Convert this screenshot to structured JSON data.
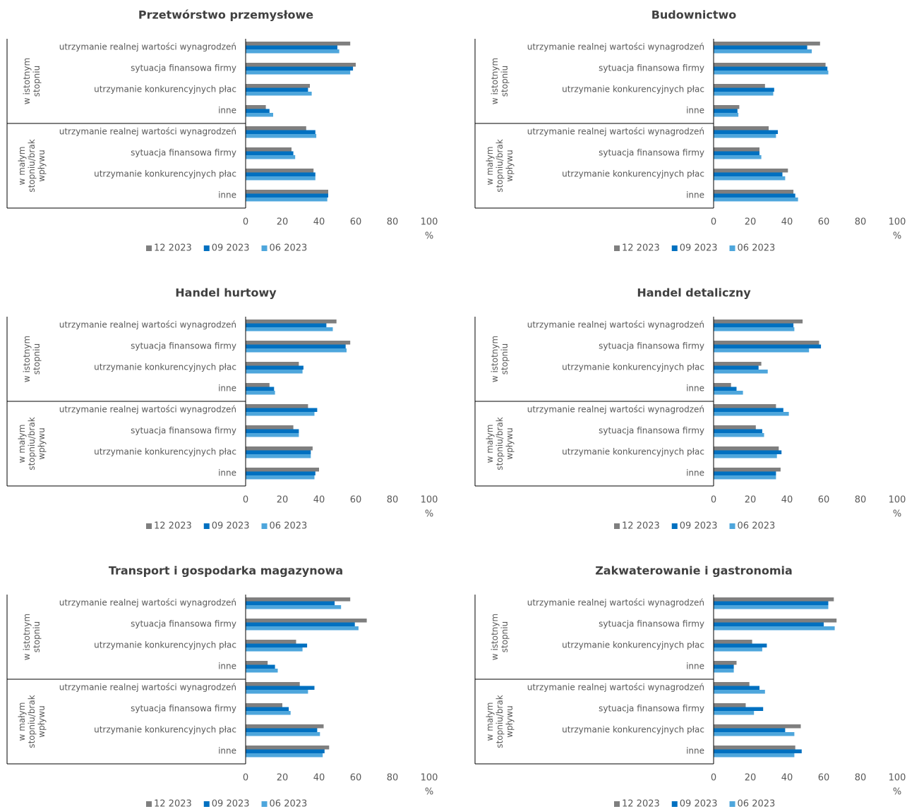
{
  "chart_data": [
    {
      "type": "bar",
      "orientation": "horizontal",
      "title": "Przetwórstwo przemysłowe",
      "groups": [
        {
          "name": "w istotnym stopniu",
          "categories": [
            "utrzymanie realnej wartości wynagrodzeń",
            "sytuacja finansowa firmy",
            "utrzymanie konkurencyjnych płac",
            "inne"
          ]
        },
        {
          "name": "w małym stopniu/brak wpływu",
          "categories": [
            "utrzymanie realnej wartości wynagrodzeń",
            "sytuacja finansowa firmy",
            "utrzymanie konkurencyjnych płac",
            "inne"
          ]
        }
      ],
      "series": [
        {
          "name": "12 2023",
          "color": "#7f7f7f",
          "values": [
            57,
            60,
            35,
            11,
            33,
            25,
            37,
            45
          ]
        },
        {
          "name": "09 2023",
          "color": "#0070c0",
          "values": [
            50,
            58.5,
            34,
            13,
            38,
            26,
            38,
            45
          ]
        },
        {
          "name": "06 2023",
          "color": "#4ea6dc",
          "values": [
            51,
            57,
            36,
            15,
            38.5,
            27,
            38,
            44.5
          ]
        }
      ],
      "xlim": [
        0,
        100
      ],
      "xticks": [
        0,
        20,
        40,
        60,
        80,
        100
      ],
      "x_unit": "%",
      "legend": "bottom"
    },
    {
      "type": "bar",
      "orientation": "horizontal",
      "title": "Budownictwo",
      "groups": [
        {
          "name": "w istotnym stopniu",
          "categories": [
            "utrzymanie realnej wartości wynagrodzeń",
            "sytuacja finansowa firmy",
            "utrzymanie konkurencyjnych płac",
            "inne"
          ]
        },
        {
          "name": "w małym stopniu/brak wpływu",
          "categories": [
            "utrzymanie realnej wartości wynagrodzeń",
            "sytuacja finansowa firmy",
            "utrzymanie konkurencyjnych płac",
            "inne"
          ]
        }
      ],
      "series": [
        {
          "name": "12 2023",
          "color": "#7f7f7f",
          "values": [
            58,
            61,
            28,
            14,
            30,
            25,
            40.5,
            43.5
          ]
        },
        {
          "name": "09 2023",
          "color": "#0070c0",
          "values": [
            51,
            62,
            33,
            13,
            35,
            25,
            37.5,
            44.5
          ]
        },
        {
          "name": "06 2023",
          "color": "#4ea6dc",
          "values": [
            53.5,
            62.5,
            32.5,
            13.5,
            34,
            26,
            39,
            46
          ]
        }
      ],
      "xlim": [
        0,
        100
      ],
      "xticks": [
        0,
        20,
        40,
        60,
        80,
        100
      ],
      "x_unit": "%",
      "legend": "bottom"
    },
    {
      "type": "bar",
      "orientation": "horizontal",
      "title": "Handel hurtowy",
      "groups": [
        {
          "name": "w istotnym stopniu",
          "categories": [
            "utrzymanie realnej wartości wynagrodzeń",
            "sytuacja finansowa firmy",
            "utrzymanie konkurencyjnych płac",
            "inne"
          ]
        },
        {
          "name": "w małym stopniu/brak wpływu",
          "categories": [
            "utrzymanie realnej wartości wynagrodzeń",
            "sytuacja finansowa firmy",
            "utrzymanie konkurencyjnych płac",
            "inne"
          ]
        }
      ],
      "series": [
        {
          "name": "12 2023",
          "color": "#7f7f7f",
          "values": [
            49.5,
            57,
            29,
            13,
            34,
            26,
            36.5,
            40
          ]
        },
        {
          "name": "09 2023",
          "color": "#0070c0",
          "values": [
            44,
            54.5,
            31.5,
            15.5,
            39,
            29,
            35.5,
            38
          ]
        },
        {
          "name": "06 2023",
          "color": "#4ea6dc",
          "values": [
            47.5,
            55,
            31,
            16,
            37.5,
            29,
            35.5,
            37.5
          ]
        }
      ],
      "xlim": [
        0,
        100
      ],
      "xticks": [
        0,
        20,
        40,
        60,
        80,
        100
      ],
      "x_unit": "%",
      "legend": "bottom"
    },
    {
      "type": "bar",
      "orientation": "horizontal",
      "title": "Handel detaliczny",
      "groups": [
        {
          "name": "w istotnym stopniu",
          "categories": [
            "utrzymanie realnej wartości wynagrodzeń",
            "sytuacja finansowa firmy",
            "utrzymanie konkurencyjnych płac",
            "inne"
          ]
        },
        {
          "name": "w małym stopniu/brak wpływu",
          "categories": [
            "utrzymanie realnej wartości wynagrodzeń",
            "sytuacja finansowa firmy",
            "utrzymanie konkurencyjnych płac",
            "inne"
          ]
        }
      ],
      "series": [
        {
          "name": "12 2023",
          "color": "#7f7f7f",
          "values": [
            48.5,
            57.5,
            26,
            9.5,
            34,
            23,
            35.5,
            36.5
          ]
        },
        {
          "name": "09 2023",
          "color": "#0070c0",
          "values": [
            43.5,
            58.5,
            24.5,
            12.5,
            38,
            26.5,
            37,
            34
          ]
        },
        {
          "name": "06 2023",
          "color": "#4ea6dc",
          "values": [
            44,
            52,
            29.5,
            16,
            41,
            27.5,
            34.5,
            34
          ]
        }
      ],
      "xlim": [
        0,
        100
      ],
      "xticks": [
        0,
        20,
        40,
        60,
        80,
        100
      ],
      "x_unit": "%",
      "legend": "bottom"
    },
    {
      "type": "bar",
      "orientation": "horizontal",
      "title": "Transport i gospodarka magazynowa",
      "groups": [
        {
          "name": "w istotnym stopniu",
          "categories": [
            "utrzymanie realnej wartości wynagrodzeń",
            "sytuacja finansowa firmy",
            "utrzymanie konkurencyjnych płac",
            "inne"
          ]
        },
        {
          "name": "w małym stopniu/brak wpływu",
          "categories": [
            "utrzymanie realnej wartości wynagrodzeń",
            "sytuacja finansowa firmy",
            "utrzymanie konkurencyjnych płac",
            "inne"
          ]
        }
      ],
      "series": [
        {
          "name": "12 2023",
          "color": "#7f7f7f",
          "values": [
            57,
            66,
            27.5,
            12,
            29.5,
            20,
            42.5,
            45.5
          ]
        },
        {
          "name": "09 2023",
          "color": "#0070c0",
          "values": [
            48.5,
            59.5,
            33.5,
            16,
            37.5,
            23.5,
            39,
            43
          ]
        },
        {
          "name": "06 2023",
          "color": "#4ea6dc",
          "values": [
            52,
            61.5,
            31,
            17.5,
            34,
            24.5,
            40.5,
            42
          ]
        }
      ],
      "xlim": [
        0,
        100
      ],
      "xticks": [
        0,
        20,
        40,
        60,
        80,
        100
      ],
      "x_unit": "%",
      "legend": "bottom"
    },
    {
      "type": "bar",
      "orientation": "horizontal",
      "title": "Zakwaterowanie i gastronomia",
      "groups": [
        {
          "name": "w istotnym stopniu",
          "categories": [
            "utrzymanie realnej wartości wynagrodzeń",
            "sytuacja finansowa firmy",
            "utrzymanie konkurencyjnych płac",
            "inne"
          ]
        },
        {
          "name": "w małym stopniu/brak wpływu",
          "categories": [
            "utrzymanie realnej wartości wynagrodzeń",
            "sytuacja finansowa firmy",
            "utrzymanie konkurencyjnych płac",
            "inne"
          ]
        }
      ],
      "series": [
        {
          "name": "12 2023",
          "color": "#7f7f7f",
          "values": [
            65.5,
            67,
            21,
            12.5,
            19.5,
            17.5,
            47.5,
            44.5
          ]
        },
        {
          "name": "09 2023",
          "color": "#0070c0",
          "values": [
            62.5,
            60,
            29,
            11,
            25,
            27,
            39,
            48
          ]
        },
        {
          "name": "06 2023",
          "color": "#4ea6dc",
          "values": [
            62.5,
            66,
            26.5,
            11,
            28,
            22,
            44,
            44
          ]
        }
      ],
      "xlim": [
        0,
        100
      ],
      "xticks": [
        0,
        20,
        40,
        60,
        80,
        100
      ],
      "x_unit": "%",
      "legend": "bottom"
    }
  ]
}
